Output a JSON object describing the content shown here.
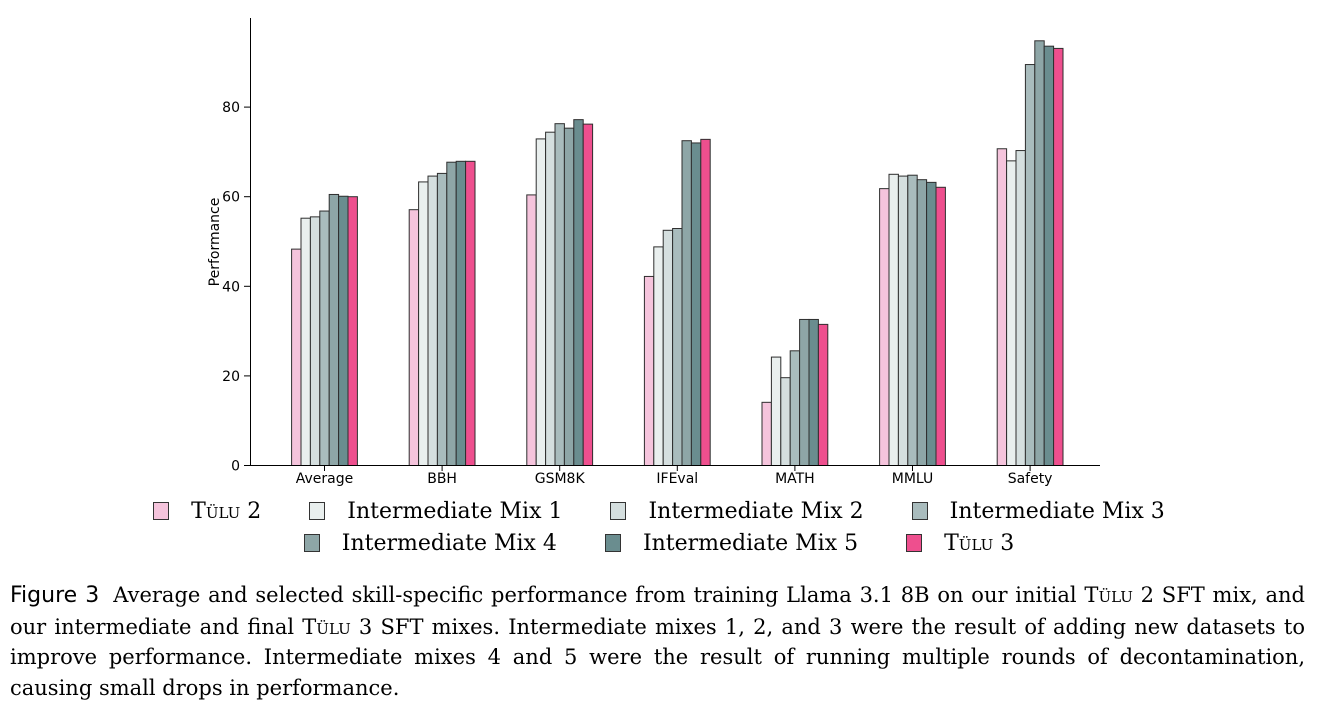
{
  "colors": {
    "Tulu2": "#f5c4dc",
    "Mix1": "#e9efee",
    "Mix2": "#d5dfdf",
    "Mix3": "#a9bcbd",
    "Mix4": "#8ea6a7",
    "Mix5": "#6a8d8f",
    "Tulu3": "#ee4f8e"
  },
  "chart_data": {
    "type": "bar",
    "ylabel": "Performance",
    "xlabel": "",
    "ylim": [
      0,
      100
    ],
    "yticks": [
      0,
      20,
      40,
      60,
      80
    ],
    "categories": [
      "Average",
      "BBH",
      "GSM8K",
      "IFEval",
      "MATH",
      "MMLU",
      "Safety"
    ],
    "series": [
      {
        "name": "Tülu 2",
        "color_key": "Tulu2",
        "values": [
          48.3,
          57.1,
          60.4,
          42.2,
          14.1,
          61.8,
          70.7
        ]
      },
      {
        "name": "Intermediate Mix 1",
        "color_key": "Mix1",
        "values": [
          55.2,
          63.3,
          72.9,
          48.8,
          24.2,
          65.0,
          68.0
        ]
      },
      {
        "name": "Intermediate Mix 2",
        "color_key": "Mix2",
        "values": [
          55.5,
          64.6,
          74.4,
          52.5,
          19.6,
          64.6,
          70.3
        ]
      },
      {
        "name": "Intermediate Mix 3",
        "color_key": "Mix3",
        "values": [
          56.8,
          65.2,
          76.3,
          52.9,
          25.6,
          64.8,
          89.5
        ]
      },
      {
        "name": "Intermediate Mix 4",
        "color_key": "Mix4",
        "values": [
          60.5,
          67.7,
          75.3,
          72.5,
          32.6,
          63.8,
          94.8
        ]
      },
      {
        "name": "Intermediate Mix 5",
        "color_key": "Mix5",
        "values": [
          60.1,
          67.9,
          77.2,
          72.0,
          32.6,
          63.2,
          93.6
        ]
      },
      {
        "name": "Tülu 3",
        "color_key": "Tulu3",
        "values": [
          60.0,
          67.9,
          76.2,
          72.8,
          31.5,
          62.1,
          93.1
        ]
      }
    ],
    "grid": false
  },
  "legend": {
    "items": [
      {
        "pre": "T",
        "sc": "ülu",
        "post": " 2"
      },
      {
        "pre": "Intermediate Mix 1",
        "sc": "",
        "post": ""
      },
      {
        "pre": "Intermediate Mix 2",
        "sc": "",
        "post": ""
      },
      {
        "pre": "Intermediate Mix 3",
        "sc": "",
        "post": ""
      },
      {
        "pre": "Intermediate Mix 4",
        "sc": "",
        "post": ""
      },
      {
        "pre": "Intermediate Mix 5",
        "sc": "",
        "post": ""
      },
      {
        "pre": "T",
        "sc": "ülu",
        "post": " 3"
      }
    ]
  },
  "caption": {
    "label": "Figure 3",
    "t1": "Average and selected skill-specific performance from training Llama 3.1 8B on our initial T",
    "sc1": "ülu",
    "t2": " 2 SFT mix, and our intermediate and final T",
    "sc2": "ülu",
    "t3": " 3 SFT mixes. Intermediate mixes 1, 2, and 3 were the result of adding new datasets to improve performance. Intermediate mixes 4 and 5 were the result of running multiple rounds of decontamination, causing small drops in performance."
  }
}
